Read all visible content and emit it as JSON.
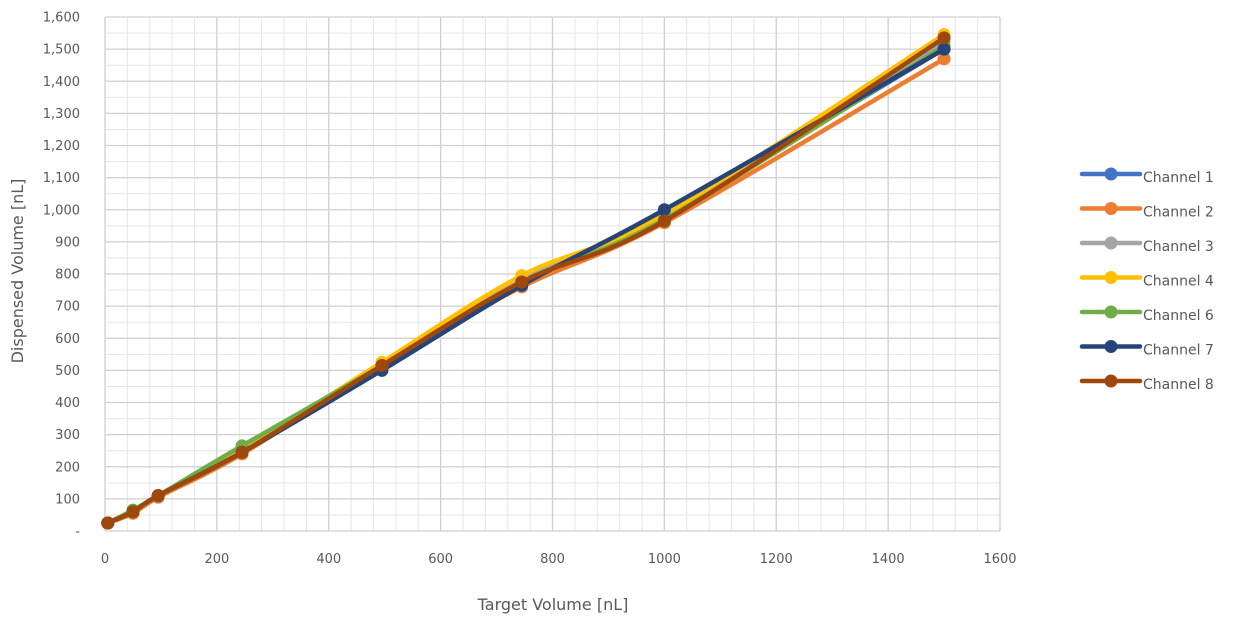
{
  "chart_data": {
    "type": "line",
    "title": "",
    "xlabel": "Target Volume [nL]",
    "ylabel": "Dispensed Volume [nL]",
    "xlim": [
      0,
      1600
    ],
    "ylim": [
      0,
      1600
    ],
    "x_ticks": [
      "0",
      "200",
      "400",
      "600",
      "800",
      "1000",
      "1200",
      "1400",
      "1600"
    ],
    "y_ticks": [
      "-",
      "100",
      "200",
      "300",
      "400",
      "500",
      "600",
      "700",
      "800",
      "900",
      "1,000",
      "1,100",
      "1,200",
      "1,300",
      "1,400",
      "1,500",
      "1,600"
    ],
    "grid": true,
    "legend_position": "right",
    "x": [
      5,
      50,
      95,
      245,
      495,
      745,
      1000,
      1500
    ],
    "series": [
      {
        "name": "Channel 1",
        "color": "#4472C4",
        "values": [
          25,
          60,
          110,
          245,
          510,
          770,
          985,
          1500
        ]
      },
      {
        "name": "Channel 2",
        "color": "#ED7D31",
        "values": [
          25,
          55,
          105,
          240,
          515,
          760,
          960,
          1470
        ]
      },
      {
        "name": "Channel 3",
        "color": "#A5A5A5",
        "values": [
          25,
          60,
          110,
          250,
          520,
          780,
          980,
          1520
        ]
      },
      {
        "name": "Channel 4",
        "color": "#FFC000",
        "values": [
          25,
          60,
          110,
          250,
          525,
          795,
          985,
          1545
        ]
      },
      {
        "name": "Channel 6",
        "color": "#70AD47",
        "values": [
          25,
          65,
          110,
          265,
          515,
          775,
          970,
          1510
        ]
      },
      {
        "name": "Channel 7",
        "color": "#264478",
        "values": [
          25,
          60,
          110,
          245,
          500,
          765,
          1000,
          1500
        ]
      },
      {
        "name": "Channel 8",
        "color": "#9E480E",
        "values": [
          25,
          60,
          110,
          245,
          515,
          775,
          965,
          1535
        ]
      }
    ]
  }
}
